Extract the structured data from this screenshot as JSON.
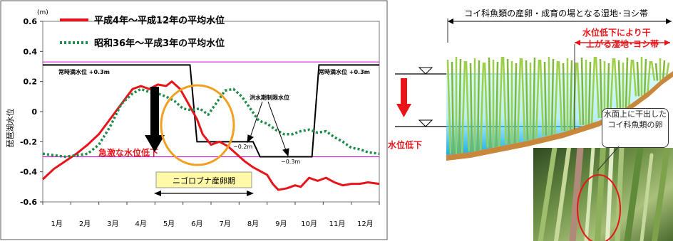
{
  "chart_data": {
    "type": "line",
    "unit_label": "(m)",
    "ylabel": "琵琶湖水位",
    "ylim": [
      -0.6,
      0.6
    ],
    "yticks": [
      "0.6",
      "0.4",
      "0.2",
      "0",
      "-0.2",
      "-0.4",
      "-0.6"
    ],
    "categories": [
      "1月",
      "2月",
      "3月",
      "4月",
      "5月",
      "6月",
      "7月",
      "8月",
      "9月",
      "10月",
      "11月",
      "12月"
    ],
    "series": [
      {
        "name": "平成4年～平成12年の平均水位",
        "color": "#e8141a",
        "style": "solid",
        "values": [
          [
            0.0,
            -0.45
          ],
          [
            0.4,
            -0.38
          ],
          [
            0.8,
            -0.33
          ],
          [
            1.2,
            -0.28
          ],
          [
            1.6,
            -0.22
          ],
          [
            2.0,
            -0.15
          ],
          [
            2.4,
            -0.05
          ],
          [
            2.8,
            0.05
          ],
          [
            3.2,
            0.15
          ],
          [
            3.5,
            0.17
          ],
          [
            3.8,
            0.15
          ],
          [
            4.1,
            0.18
          ],
          [
            4.4,
            0.17
          ],
          [
            4.6,
            0.2
          ],
          [
            4.9,
            0.15
          ],
          [
            5.2,
            0.05
          ],
          [
            5.5,
            -0.05
          ],
          [
            5.7,
            -0.15
          ],
          [
            6.0,
            -0.22
          ],
          [
            6.3,
            -0.2
          ],
          [
            6.6,
            -0.23
          ],
          [
            6.9,
            -0.28
          ],
          [
            7.2,
            -0.33
          ],
          [
            7.5,
            -0.37
          ],
          [
            7.8,
            -0.4
          ],
          [
            8.0,
            -0.42
          ],
          [
            8.2,
            -0.48
          ],
          [
            8.4,
            -0.52
          ],
          [
            8.7,
            -0.51
          ],
          [
            9.0,
            -0.49
          ],
          [
            9.2,
            -0.5
          ],
          [
            9.5,
            -0.44
          ],
          [
            9.8,
            -0.46
          ],
          [
            10.1,
            -0.44
          ],
          [
            10.4,
            -0.47
          ],
          [
            10.7,
            -0.49
          ],
          [
            11.0,
            -0.48
          ],
          [
            11.3,
            -0.48
          ],
          [
            11.6,
            -0.47
          ],
          [
            12.0,
            -0.48
          ]
        ]
      },
      {
        "name": "昭和36年～平成3年の平均水位",
        "color": "#1f8c4a",
        "style": "dotted",
        "values": [
          [
            0.0,
            -0.28
          ],
          [
            0.4,
            -0.29
          ],
          [
            0.8,
            -0.3
          ],
          [
            1.2,
            -0.29
          ],
          [
            1.6,
            -0.28
          ],
          [
            2.0,
            -0.22
          ],
          [
            2.4,
            -0.1
          ],
          [
            2.8,
            0.05
          ],
          [
            3.2,
            0.12
          ],
          [
            3.5,
            0.15
          ],
          [
            3.8,
            0.13
          ],
          [
            4.1,
            0.12
          ],
          [
            4.4,
            0.1
          ],
          [
            4.7,
            0.07
          ],
          [
            5.0,
            0.02
          ],
          [
            5.3,
            0.01
          ],
          [
            5.6,
            0.02
          ],
          [
            5.9,
            -0.02
          ],
          [
            6.2,
            0.06
          ],
          [
            6.5,
            0.14
          ],
          [
            6.8,
            0.15
          ],
          [
            7.1,
            0.1
          ],
          [
            7.4,
            0.02
          ],
          [
            7.7,
            -0.06
          ],
          [
            8.0,
            -0.08
          ],
          [
            8.3,
            -0.12
          ],
          [
            8.6,
            -0.15
          ],
          [
            8.9,
            -0.15
          ],
          [
            9.2,
            -0.13
          ],
          [
            9.5,
            -0.12
          ],
          [
            9.8,
            -0.14
          ],
          [
            10.1,
            -0.13
          ],
          [
            10.4,
            -0.17
          ],
          [
            10.7,
            -0.2
          ],
          [
            11.0,
            -0.24
          ],
          [
            11.3,
            -0.25
          ],
          [
            11.6,
            -0.27
          ],
          [
            12.0,
            -0.28
          ]
        ]
      }
    ],
    "limit_line": {
      "name": "洪水期制限水位",
      "color": "#000000",
      "points": [
        [
          0.0,
          0.31
        ],
        [
          5.25,
          0.31
        ],
        [
          5.5,
          -0.2
        ],
        [
          7.5,
          -0.2
        ],
        [
          7.75,
          -0.3
        ],
        [
          9.6,
          -0.3
        ],
        [
          9.85,
          0.31
        ],
        [
          12.0,
          0.31
        ]
      ]
    },
    "reference_lines": [
      {
        "label": "常時満水位 +0.3m",
        "value": 0.33,
        "color": "#e000e0"
      },
      {
        "value": -0.3,
        "color": "#e000e0"
      }
    ],
    "annotations": {
      "normal_left": "常時満水位 +0.3m",
      "normal_right": "常時満水位 +0.3m",
      "flood_limit": "洪水期制限水位",
      "minus02": "−0.2m",
      "minus03": "−0.3m",
      "sharp_drop": "急激な水位低下",
      "spawning": "ニゴロブナ産卵期"
    }
  },
  "diagram": {
    "title": "コイ科魚類の産卵・成育の場となる湿地･ヨシ帯",
    "red_note_line1": "水位低下により干",
    "red_note_line2": "上がる湿地･ヨシ帯",
    "water_drop_label": "水位低下",
    "callout": "水面上に干出したコイ科魚類の卵",
    "colors": {
      "water": "#c6f5f8",
      "water_deep": "#1ab0e0",
      "land": "#c8873a",
      "reed": "#8bc43c",
      "arrow": "#e8141a"
    }
  }
}
